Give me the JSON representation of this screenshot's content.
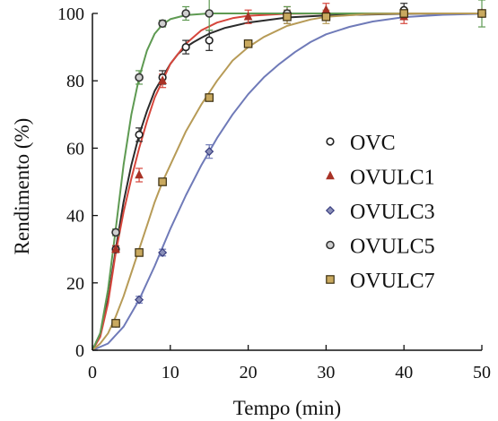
{
  "chart_data": {
    "type": "scatter",
    "xlabel": "Tempo (min)",
    "ylabel": "Rendimento (%)",
    "xlim": [
      0,
      50
    ],
    "ylim": [
      0,
      100
    ],
    "xticks": [
      0,
      10,
      20,
      30,
      40,
      50
    ],
    "yticks": [
      0,
      20,
      40,
      60,
      80,
      100
    ],
    "grid": false,
    "legend_position": "right",
    "series": [
      {
        "name": "OVC",
        "marker": "circle-open",
        "color": "#222222",
        "line_color": "#2b2b2b",
        "points": [
          {
            "x": 3,
            "y": 30,
            "err": 1
          },
          {
            "x": 6,
            "y": 64,
            "err": 2
          },
          {
            "x": 9,
            "y": 81,
            "err": 2
          },
          {
            "x": 12,
            "y": 90,
            "err": 2
          },
          {
            "x": 15,
            "y": 92,
            "err": 3
          },
          {
            "x": 25,
            "y": 99,
            "err": 2
          },
          {
            "x": 40,
            "y": 101,
            "err": 2
          },
          {
            "x": 50,
            "y": 100,
            "err": 1
          }
        ],
        "curve": [
          [
            0,
            0
          ],
          [
            1,
            5
          ],
          [
            2,
            15
          ],
          [
            3,
            30
          ],
          [
            4,
            44
          ],
          [
            5,
            55
          ],
          [
            6,
            64
          ],
          [
            7,
            71
          ],
          [
            8,
            77
          ],
          [
            9,
            81
          ],
          [
            10,
            85
          ],
          [
            11,
            88
          ],
          [
            12,
            90
          ],
          [
            13,
            91.5
          ],
          [
            14,
            92.8
          ],
          [
            15,
            94
          ],
          [
            17,
            95.7
          ],
          [
            20,
            97.3
          ],
          [
            25,
            98.8
          ],
          [
            30,
            99.4
          ],
          [
            40,
            99.9
          ],
          [
            50,
            100
          ]
        ]
      },
      {
        "name": "OVULC1",
        "marker": "triangle",
        "color": "#a83226",
        "line_color": "#d6463c",
        "points": [
          {
            "x": 3,
            "y": 30,
            "err": 1
          },
          {
            "x": 6,
            "y": 52,
            "err": 2
          },
          {
            "x": 9,
            "y": 80,
            "err": 2
          },
          {
            "x": 20,
            "y": 99,
            "err": 2
          },
          {
            "x": 25,
            "y": 100,
            "err": 2
          },
          {
            "x": 30,
            "y": 101,
            "err": 2
          },
          {
            "x": 40,
            "y": 99,
            "err": 2
          },
          {
            "x": 50,
            "y": 100,
            "err": 1
          }
        ],
        "curve": [
          [
            0,
            0
          ],
          [
            1,
            4
          ],
          [
            2,
            14
          ],
          [
            3,
            29
          ],
          [
            4,
            41
          ],
          [
            5,
            51
          ],
          [
            6,
            60
          ],
          [
            7,
            68
          ],
          [
            8,
            75
          ],
          [
            9,
            80
          ],
          [
            10,
            85
          ],
          [
            12,
            91
          ],
          [
            14,
            95
          ],
          [
            16,
            97.3
          ],
          [
            18,
            98.6
          ],
          [
            20,
            99.3
          ],
          [
            25,
            99.9
          ],
          [
            30,
            100
          ],
          [
            50,
            100
          ]
        ]
      },
      {
        "name": "OVULC3",
        "marker": "diamond",
        "color": "#3a3f80",
        "line_color": "#6f7ab8",
        "points": [
          {
            "x": 3,
            "y": 8,
            "err": 1
          },
          {
            "x": 6,
            "y": 15,
            "err": 1
          },
          {
            "x": 9,
            "y": 29,
            "err": 1
          },
          {
            "x": 15,
            "y": 59,
            "err": 2
          },
          {
            "x": 25,
            "y": 100,
            "err": 1
          },
          {
            "x": 50,
            "y": 100,
            "err": 1
          }
        ],
        "curve": [
          [
            0,
            0
          ],
          [
            2,
            2
          ],
          [
            4,
            7
          ],
          [
            6,
            15
          ],
          [
            8,
            25
          ],
          [
            10,
            36
          ],
          [
            12,
            46
          ],
          [
            14,
            55
          ],
          [
            16,
            63
          ],
          [
            18,
            70
          ],
          [
            20,
            76
          ],
          [
            22,
            81
          ],
          [
            24,
            85
          ],
          [
            26,
            88.5
          ],
          [
            28,
            91.5
          ],
          [
            30,
            93.8
          ],
          [
            33,
            96
          ],
          [
            36,
            97.6
          ],
          [
            40,
            98.9
          ],
          [
            45,
            99.6
          ],
          [
            50,
            99.9
          ]
        ]
      },
      {
        "name": "OVULC5",
        "marker": "circle",
        "color": "#333333",
        "line_color": "#5e9a52",
        "points": [
          {
            "x": 3,
            "y": 35,
            "err": 1
          },
          {
            "x": 6,
            "y": 81,
            "err": 2
          },
          {
            "x": 9,
            "y": 97,
            "err": 1
          },
          {
            "x": 12,
            "y": 100,
            "err": 2
          },
          {
            "x": 15,
            "y": 100,
            "err": 5
          },
          {
            "x": 25,
            "y": 100,
            "err": 2
          },
          {
            "x": 50,
            "y": 100,
            "err": 4
          }
        ],
        "curve": [
          [
            0,
            0
          ],
          [
            1,
            5
          ],
          [
            2,
            18
          ],
          [
            3,
            36
          ],
          [
            4,
            55
          ],
          [
            5,
            70
          ],
          [
            6,
            81
          ],
          [
            7,
            89
          ],
          [
            8,
            94
          ],
          [
            9,
            96.7
          ],
          [
            10,
            98.3
          ],
          [
            12,
            99.5
          ],
          [
            15,
            100
          ],
          [
            50,
            100
          ]
        ]
      },
      {
        "name": "OVULC7",
        "marker": "square",
        "color": "#9a7a36",
        "line_color": "#b79b57",
        "points": [
          {
            "x": 3,
            "y": 8,
            "err": 1
          },
          {
            "x": 6,
            "y": 29,
            "err": 1
          },
          {
            "x": 9,
            "y": 50,
            "err": 1
          },
          {
            "x": 15,
            "y": 75,
            "err": 1
          },
          {
            "x": 20,
            "y": 91,
            "err": 1
          },
          {
            "x": 25,
            "y": 99,
            "err": 2
          },
          {
            "x": 30,
            "y": 99,
            "err": 2
          },
          {
            "x": 40,
            "y": 100,
            "err": 1
          },
          {
            "x": 50,
            "y": 100,
            "err": 1
          }
        ],
        "curve": [
          [
            0,
            0
          ],
          [
            1,
            2
          ],
          [
            2,
            5
          ],
          [
            3,
            10
          ],
          [
            4,
            16
          ],
          [
            5,
            23
          ],
          [
            6,
            30
          ],
          [
            7,
            37
          ],
          [
            8,
            44
          ],
          [
            9,
            50
          ],
          [
            10,
            55
          ],
          [
            12,
            65
          ],
          [
            14,
            73
          ],
          [
            16,
            80
          ],
          [
            18,
            86
          ],
          [
            20,
            90
          ],
          [
            22,
            93
          ],
          [
            25,
            96.3
          ],
          [
            28,
            98.2
          ],
          [
            30,
            99
          ],
          [
            35,
            99.8
          ],
          [
            40,
            100
          ],
          [
            50,
            100
          ]
        ]
      }
    ]
  }
}
